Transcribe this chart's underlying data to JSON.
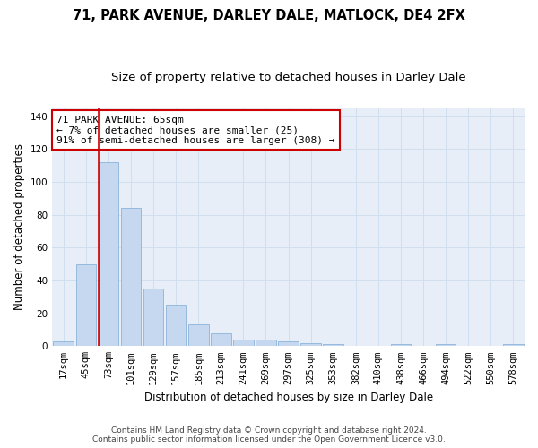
{
  "title1": "71, PARK AVENUE, DARLEY DALE, MATLOCK, DE4 2FX",
  "title2": "Size of property relative to detached houses in Darley Dale",
  "xlabel": "Distribution of detached houses by size in Darley Dale",
  "ylabel": "Number of detached properties",
  "categories": [
    "17sqm",
    "45sqm",
    "73sqm",
    "101sqm",
    "129sqm",
    "157sqm",
    "185sqm",
    "213sqm",
    "241sqm",
    "269sqm",
    "297sqm",
    "325sqm",
    "353sqm",
    "382sqm",
    "410sqm",
    "438sqm",
    "466sqm",
    "494sqm",
    "522sqm",
    "550sqm",
    "578sqm"
  ],
  "values": [
    3,
    50,
    112,
    84,
    35,
    25,
    13,
    8,
    4,
    4,
    3,
    2,
    1,
    0,
    0,
    1,
    0,
    1,
    0,
    0,
    1
  ],
  "bar_color": "#c5d8f0",
  "bar_edge_color": "#8ab4d8",
  "vline_color": "#cc0000",
  "vline_x_index": 1.575,
  "annotation_text": "71 PARK AVENUE: 65sqm\n← 7% of detached houses are smaller (25)\n91% of semi-detached houses are larger (308) →",
  "annotation_box_color": "#ffffff",
  "annotation_box_edge_color": "#cc0000",
  "ylim": [
    0,
    145
  ],
  "yticks": [
    0,
    20,
    40,
    60,
    80,
    100,
    120,
    140
  ],
  "grid_color": "#d0dff0",
  "background_color": "#e8eef8",
  "footer_text": "Contains HM Land Registry data © Crown copyright and database right 2024.\nContains public sector information licensed under the Open Government Licence v3.0.",
  "title1_fontsize": 10.5,
  "title2_fontsize": 9.5,
  "xlabel_fontsize": 8.5,
  "ylabel_fontsize": 8.5,
  "tick_fontsize": 7.5,
  "annotation_fontsize": 8,
  "footer_fontsize": 6.5
}
